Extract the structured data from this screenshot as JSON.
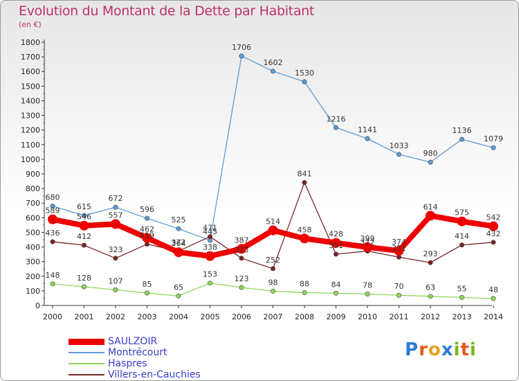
{
  "title": "Evolution du Montant de la Dette par Habitant",
  "unit": "(en €)",
  "logo": {
    "text": "Proxiti",
    "letters": [
      "P",
      "r",
      "o",
      "x",
      "i",
      "t",
      "i"
    ],
    "colors": [
      "#2f7bd6",
      "#e85a1e",
      "#e8a21e",
      "#2f7bd6",
      "#7ab51d",
      "#e85a1e",
      "#7ab51d"
    ]
  },
  "chart_data": {
    "type": "line",
    "title": "Evolution du Montant de la Dette par Habitant",
    "unit": "(en €)",
    "x": [
      "2000",
      "2001",
      "2002",
      "2003",
      "2004",
      "2005",
      "2006",
      "2007",
      "2008",
      "2009",
      "2010",
      "2011",
      "2012",
      "2013",
      "2014"
    ],
    "ylim": [
      0,
      1800
    ],
    "yticks": [
      0,
      100,
      200,
      300,
      400,
      500,
      600,
      700,
      800,
      900,
      1000,
      1100,
      1200,
      1300,
      1400,
      1500,
      1600,
      1700,
      1800
    ],
    "grid": false,
    "legend_position": "bottom-left",
    "series": [
      {
        "name": "SAULZOIR",
        "color": "#ee0000",
        "values": [
          589,
          546,
          557,
          462,
          364,
          338,
          387,
          514,
          458,
          428,
          399,
          374,
          614,
          575,
          542
        ],
        "labels": [
          "589",
          "546",
          "557",
          "462",
          "364",
          "338",
          "387",
          "514",
          "458",
          "428",
          "399",
          "374",
          "614",
          "575",
          "542"
        ]
      },
      {
        "name": "Montrécourt",
        "color": "#5b9bd5",
        "values": [
          680,
          615,
          672,
          596,
          525,
          445,
          1706,
          1602,
          1530,
          1216,
          1141,
          1033,
          980,
          1136,
          1079
        ],
        "labels": [
          "680",
          "615",
          "672",
          "596",
          "525",
          "445",
          "1706",
          "1602",
          "1530",
          "1216",
          "1141",
          "1033",
          "980",
          "1136",
          "1079"
        ]
      },
      {
        "name": "Haspres",
        "color": "#8ed65a",
        "values": [
          148,
          128,
          107,
          85,
          65,
          153,
          123,
          98,
          88,
          84,
          78,
          70,
          63,
          55,
          48
        ],
        "labels": [
          "148",
          "128",
          "107",
          "85",
          "65",
          "153",
          "123",
          "98",
          "88",
          "84",
          "78",
          "70",
          "63",
          "55",
          "48"
        ]
      },
      {
        "name": "Villers-en-Cauchies",
        "color": "#7a2424",
        "values": [
          436,
          412,
          323,
          419,
          372,
          471,
          323,
          252,
          841,
          351,
          372,
          331,
          293,
          414,
          432
        ],
        "labels": [
          "436",
          "412",
          "323",
          "419",
          "372",
          "471",
          "323",
          "252",
          "841",
          "351",
          "372",
          "331",
          "293",
          "414",
          "432"
        ]
      }
    ]
  }
}
